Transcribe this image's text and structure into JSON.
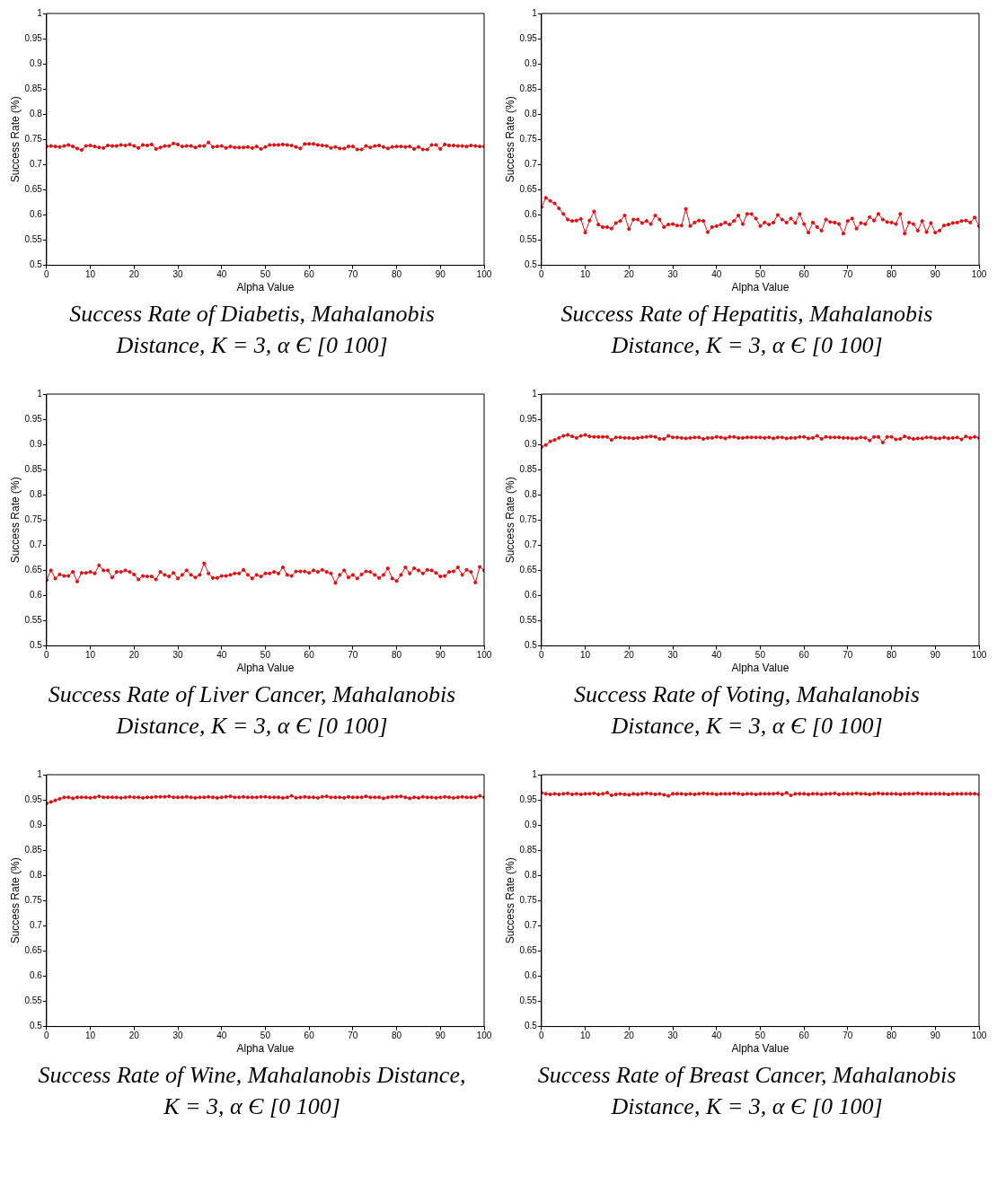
{
  "chart_data": [
    {
      "type": "line",
      "title": "Success Rate of Diabetis, Mahalanobis Distance, K = 3, α Є [0 100]",
      "xlabel": "Alpha Value",
      "ylabel": "Success Rate (%)",
      "marker": "circle",
      "line_style": "solid",
      "grid": false,
      "legend": false,
      "xlim": [
        0,
        100
      ],
      "xticks": [
        0,
        10,
        20,
        30,
        40,
        50,
        60,
        70,
        80,
        90,
        100
      ],
      "ylim": [
        0.5,
        1
      ],
      "yticks": [
        0.5,
        0.55,
        0.6,
        0.65,
        0.7,
        0.75,
        0.8,
        0.85,
        0.9,
        0.95,
        1
      ],
      "x": [
        0,
        1,
        2,
        3,
        4,
        5,
        6,
        7,
        8,
        9,
        10,
        11,
        12,
        13,
        14,
        15,
        16,
        17,
        18,
        19,
        20,
        21,
        22,
        23,
        24,
        25,
        26,
        27,
        28,
        29,
        30,
        31,
        32,
        33,
        34,
        35,
        36,
        37,
        38,
        39,
        40,
        41,
        42,
        43,
        44,
        45,
        46,
        47,
        48,
        49,
        50,
        51,
        52,
        53,
        54,
        55,
        56,
        57,
        58,
        59,
        60,
        61,
        62,
        63,
        64,
        65,
        66,
        67,
        68,
        69,
        70,
        71,
        72,
        73,
        74,
        75,
        76,
        77,
        78,
        79,
        80,
        81,
        82,
        83,
        84,
        85,
        86,
        87,
        88,
        89,
        90,
        91,
        92,
        93,
        94,
        95,
        96,
        97,
        98,
        99,
        100
      ],
      "series": [
        {
          "color": "#e01010",
          "values": [
            0.736,
            0.737,
            0.736,
            0.735,
            0.737,
            0.739,
            0.736,
            0.732,
            0.729,
            0.737,
            0.738,
            0.736,
            0.734,
            0.733,
            0.738,
            0.737,
            0.737,
            0.739,
            0.738,
            0.74,
            0.737,
            0.733,
            0.739,
            0.738,
            0.74,
            0.731,
            0.734,
            0.737,
            0.737,
            0.742,
            0.74,
            0.736,
            0.737,
            0.737,
            0.734,
            0.737,
            0.737,
            0.744,
            0.735,
            0.736,
            0.737,
            0.733,
            0.736,
            0.734,
            0.734,
            0.734,
            0.735,
            0.733,
            0.736,
            0.731,
            0.735,
            0.739,
            0.739,
            0.739,
            0.74,
            0.739,
            0.738,
            0.735,
            0.732,
            0.741,
            0.741,
            0.741,
            0.739,
            0.738,
            0.737,
            0.733,
            0.735,
            0.732,
            0.732,
            0.736,
            0.736,
            0.73,
            0.73,
            0.737,
            0.734,
            0.737,
            0.738,
            0.735,
            0.732,
            0.735,
            0.736,
            0.736,
            0.735,
            0.736,
            0.731,
            0.735,
            0.73,
            0.73,
            0.739,
            0.739,
            0.731,
            0.74,
            0.738,
            0.738,
            0.737,
            0.737,
            0.736,
            0.738,
            0.737,
            0.736,
            0.736
          ]
        }
      ]
    },
    {
      "type": "line",
      "title": "Success Rate of Hepatitis, Mahalanobis Distance, K = 3, α Є [0 100]",
      "xlabel": "Alpha Value",
      "ylabel": "Success Rate (%)",
      "marker": "circle",
      "line_style": "solid",
      "grid": false,
      "legend": false,
      "xlim": [
        0,
        100
      ],
      "xticks": [
        0,
        10,
        20,
        30,
        40,
        50,
        60,
        70,
        80,
        90,
        100
      ],
      "ylim": [
        0.5,
        1
      ],
      "yticks": [
        0.5,
        0.55,
        0.6,
        0.65,
        0.7,
        0.75,
        0.8,
        0.85,
        0.9,
        0.95,
        1
      ],
      "x": [
        0,
        1,
        2,
        3,
        4,
        5,
        6,
        7,
        8,
        9,
        10,
        11,
        12,
        13,
        14,
        15,
        16,
        17,
        18,
        19,
        20,
        21,
        22,
        23,
        24,
        25,
        26,
        27,
        28,
        29,
        30,
        31,
        32,
        33,
        34,
        35,
        36,
        37,
        38,
        39,
        40,
        41,
        42,
        43,
        44,
        45,
        46,
        47,
        48,
        49,
        50,
        51,
        52,
        53,
        54,
        55,
        56,
        57,
        58,
        59,
        60,
        61,
        62,
        63,
        64,
        65,
        66,
        67,
        68,
        69,
        70,
        71,
        72,
        73,
        74,
        75,
        76,
        77,
        78,
        79,
        80,
        81,
        82,
        83,
        84,
        85,
        86,
        87,
        88,
        89,
        90,
        91,
        92,
        93,
        94,
        95,
        96,
        97,
        98,
        99,
        100
      ],
      "series": [
        {
          "color": "#e01010",
          "values": [
            0.616,
            0.634,
            0.628,
            0.623,
            0.613,
            0.602,
            0.591,
            0.588,
            0.589,
            0.592,
            0.565,
            0.589,
            0.607,
            0.581,
            0.576,
            0.576,
            0.573,
            0.584,
            0.588,
            0.599,
            0.572,
            0.591,
            0.591,
            0.584,
            0.588,
            0.582,
            0.599,
            0.591,
            0.576,
            0.581,
            0.582,
            0.579,
            0.579,
            0.612,
            0.578,
            0.585,
            0.589,
            0.588,
            0.566,
            0.576,
            0.578,
            0.581,
            0.585,
            0.581,
            0.588,
            0.599,
            0.582,
            0.602,
            0.602,
            0.593,
            0.578,
            0.585,
            0.581,
            0.585,
            0.6,
            0.591,
            0.585,
            0.593,
            0.584,
            0.602,
            0.582,
            0.565,
            0.585,
            0.576,
            0.569,
            0.591,
            0.586,
            0.585,
            0.582,
            0.563,
            0.588,
            0.593,
            0.573,
            0.584,
            0.582,
            0.596,
            0.589,
            0.602,
            0.591,
            0.586,
            0.585,
            0.582,
            0.602,
            0.563,
            0.585,
            0.582,
            0.569,
            0.588,
            0.566,
            0.584,
            0.565,
            0.569,
            0.579,
            0.581,
            0.584,
            0.585,
            0.588,
            0.589,
            0.585,
            0.595,
            0.578
          ]
        }
      ]
    },
    {
      "type": "line",
      "title": "Success Rate of Liver Cancer, Mahalanobis Distance, K = 3, α Є [0 100]",
      "xlabel": "Alpha Value",
      "ylabel": "Success Rate (%)",
      "marker": "circle",
      "line_style": "solid",
      "grid": false,
      "legend": false,
      "xlim": [
        0,
        100
      ],
      "xticks": [
        0,
        10,
        20,
        30,
        40,
        50,
        60,
        70,
        80,
        90,
        100
      ],
      "ylim": [
        0.5,
        1
      ],
      "yticks": [
        0.5,
        0.55,
        0.6,
        0.65,
        0.7,
        0.75,
        0.8,
        0.85,
        0.9,
        0.95,
        1
      ],
      "x": [
        0,
        1,
        2,
        3,
        4,
        5,
        6,
        7,
        8,
        9,
        10,
        11,
        12,
        13,
        14,
        15,
        16,
        17,
        18,
        19,
        20,
        21,
        22,
        23,
        24,
        25,
        26,
        27,
        28,
        29,
        30,
        31,
        32,
        33,
        34,
        35,
        36,
        37,
        38,
        39,
        40,
        41,
        42,
        43,
        44,
        45,
        46,
        47,
        48,
        49,
        50,
        51,
        52,
        53,
        54,
        55,
        56,
        57,
        58,
        59,
        60,
        61,
        62,
        63,
        64,
        65,
        66,
        67,
        68,
        69,
        70,
        71,
        72,
        73,
        74,
        75,
        76,
        77,
        78,
        79,
        80,
        81,
        82,
        83,
        84,
        85,
        86,
        87,
        88,
        89,
        90,
        91,
        92,
        93,
        94,
        95,
        96,
        97,
        98,
        99,
        100
      ],
      "series": [
        {
          "color": "#e01010",
          "values": [
            0.631,
            0.65,
            0.634,
            0.642,
            0.639,
            0.639,
            0.647,
            0.628,
            0.645,
            0.645,
            0.647,
            0.644,
            0.66,
            0.65,
            0.65,
            0.636,
            0.647,
            0.647,
            0.65,
            0.647,
            0.642,
            0.632,
            0.639,
            0.638,
            0.638,
            0.632,
            0.647,
            0.641,
            0.638,
            0.645,
            0.634,
            0.641,
            0.65,
            0.641,
            0.636,
            0.641,
            0.664,
            0.644,
            0.635,
            0.635,
            0.639,
            0.639,
            0.641,
            0.644,
            0.644,
            0.651,
            0.641,
            0.634,
            0.641,
            0.638,
            0.644,
            0.644,
            0.647,
            0.644,
            0.656,
            0.641,
            0.639,
            0.648,
            0.648,
            0.648,
            0.645,
            0.65,
            0.647,
            0.651,
            0.647,
            0.644,
            0.625,
            0.641,
            0.65,
            0.636,
            0.641,
            0.634,
            0.642,
            0.648,
            0.647,
            0.641,
            0.635,
            0.641,
            0.654,
            0.634,
            0.629,
            0.641,
            0.656,
            0.644,
            0.654,
            0.65,
            0.644,
            0.651,
            0.65,
            0.645,
            0.638,
            0.639,
            0.647,
            0.648,
            0.656,
            0.641,
            0.651,
            0.647,
            0.626,
            0.657,
            0.65
          ]
        }
      ]
    },
    {
      "type": "line",
      "title": "Success Rate of Voting, Mahalanobis Distance, K = 3, α Є [0 100]",
      "xlabel": "Alpha Value",
      "ylabel": "Success Rate (%)",
      "marker": "circle",
      "line_style": "solid",
      "grid": false,
      "legend": false,
      "xlim": [
        0,
        100
      ],
      "xticks": [
        0,
        10,
        20,
        30,
        40,
        50,
        60,
        70,
        80,
        90,
        100
      ],
      "ylim": [
        0.5,
        1
      ],
      "yticks": [
        0.5,
        0.55,
        0.6,
        0.65,
        0.7,
        0.75,
        0.8,
        0.85,
        0.9,
        0.95,
        1
      ],
      "x": [
        0,
        1,
        2,
        3,
        4,
        5,
        6,
        7,
        8,
        9,
        10,
        11,
        12,
        13,
        14,
        15,
        16,
        17,
        18,
        19,
        20,
        21,
        22,
        23,
        24,
        25,
        26,
        27,
        28,
        29,
        30,
        31,
        32,
        33,
        34,
        35,
        36,
        37,
        38,
        39,
        40,
        41,
        42,
        43,
        44,
        45,
        46,
        47,
        48,
        49,
        50,
        51,
        52,
        53,
        54,
        55,
        56,
        57,
        58,
        59,
        60,
        61,
        62,
        63,
        64,
        65,
        66,
        67,
        68,
        69,
        70,
        71,
        72,
        73,
        74,
        75,
        76,
        77,
        78,
        79,
        80,
        81,
        82,
        83,
        84,
        85,
        86,
        87,
        88,
        89,
        90,
        91,
        92,
        93,
        94,
        95,
        96,
        97,
        98,
        99,
        100
      ],
      "series": [
        {
          "color": "#e01010",
          "values": [
            0.895,
            0.899,
            0.906,
            0.909,
            0.913,
            0.917,
            0.919,
            0.916,
            0.913,
            0.917,
            0.919,
            0.916,
            0.915,
            0.915,
            0.915,
            0.915,
            0.909,
            0.914,
            0.914,
            0.913,
            0.913,
            0.912,
            0.913,
            0.914,
            0.915,
            0.916,
            0.915,
            0.911,
            0.911,
            0.917,
            0.914,
            0.914,
            0.913,
            0.912,
            0.913,
            0.914,
            0.914,
            0.911,
            0.913,
            0.913,
            0.915,
            0.914,
            0.912,
            0.915,
            0.915,
            0.913,
            0.913,
            0.914,
            0.914,
            0.914,
            0.914,
            0.913,
            0.914,
            0.912,
            0.914,
            0.914,
            0.912,
            0.913,
            0.913,
            0.915,
            0.915,
            0.912,
            0.913,
            0.917,
            0.911,
            0.915,
            0.914,
            0.914,
            0.914,
            0.913,
            0.913,
            0.912,
            0.912,
            0.914,
            0.913,
            0.908,
            0.915,
            0.915,
            0.904,
            0.915,
            0.915,
            0.91,
            0.911,
            0.916,
            0.913,
            0.911,
            0.912,
            0.912,
            0.914,
            0.914,
            0.912,
            0.912,
            0.914,
            0.912,
            0.913,
            0.914,
            0.91,
            0.916,
            0.913,
            0.915,
            0.913
          ]
        }
      ]
    },
    {
      "type": "line",
      "title": "Success Rate of Wine, Mahalanobis Distance, K = 3, α Є [0 100]",
      "xlabel": "Alpha Value",
      "ylabel": "Success Rate (%)",
      "marker": "circle",
      "line_style": "solid",
      "grid": false,
      "legend": false,
      "xlim": [
        0,
        100
      ],
      "xticks": [
        0,
        10,
        20,
        30,
        40,
        50,
        60,
        70,
        80,
        90,
        100
      ],
      "ylim": [
        0.5,
        1
      ],
      "yticks": [
        0.5,
        0.55,
        0.6,
        0.65,
        0.7,
        0.75,
        0.8,
        0.85,
        0.9,
        0.95,
        1
      ],
      "x": [
        0,
        1,
        2,
        3,
        4,
        5,
        6,
        7,
        8,
        9,
        10,
        11,
        12,
        13,
        14,
        15,
        16,
        17,
        18,
        19,
        20,
        21,
        22,
        23,
        24,
        25,
        26,
        27,
        28,
        29,
        30,
        31,
        32,
        33,
        34,
        35,
        36,
        37,
        38,
        39,
        40,
        41,
        42,
        43,
        44,
        45,
        46,
        47,
        48,
        49,
        50,
        51,
        52,
        53,
        54,
        55,
        56,
        57,
        58,
        59,
        60,
        61,
        62,
        63,
        64,
        65,
        66,
        67,
        68,
        69,
        70,
        71,
        72,
        73,
        74,
        75,
        76,
        77,
        78,
        79,
        80,
        81,
        82,
        83,
        84,
        85,
        86,
        87,
        88,
        89,
        90,
        91,
        92,
        93,
        94,
        95,
        96,
        97,
        98,
        99,
        100
      ],
      "series": [
        {
          "color": "#e01010",
          "values": [
            0.943,
            0.946,
            0.949,
            0.952,
            0.955,
            0.955,
            0.953,
            0.955,
            0.955,
            0.955,
            0.954,
            0.955,
            0.957,
            0.955,
            0.955,
            0.955,
            0.955,
            0.954,
            0.955,
            0.956,
            0.955,
            0.955,
            0.954,
            0.955,
            0.955,
            0.956,
            0.956,
            0.956,
            0.957,
            0.955,
            0.955,
            0.955,
            0.956,
            0.955,
            0.954,
            0.955,
            0.955,
            0.956,
            0.955,
            0.954,
            0.955,
            0.956,
            0.957,
            0.955,
            0.955,
            0.956,
            0.955,
            0.955,
            0.955,
            0.956,
            0.956,
            0.955,
            0.955,
            0.955,
            0.954,
            0.955,
            0.958,
            0.954,
            0.955,
            0.956,
            0.955,
            0.955,
            0.954,
            0.956,
            0.957,
            0.955,
            0.955,
            0.955,
            0.954,
            0.956,
            0.955,
            0.955,
            0.955,
            0.957,
            0.955,
            0.955,
            0.955,
            0.953,
            0.955,
            0.956,
            0.956,
            0.957,
            0.955,
            0.953,
            0.955,
            0.954,
            0.956,
            0.955,
            0.955,
            0.954,
            0.955,
            0.956,
            0.955,
            0.954,
            0.955,
            0.956,
            0.955,
            0.955,
            0.955,
            0.958,
            0.955
          ]
        }
      ]
    },
    {
      "type": "line",
      "title": "Success Rate of Breast Cancer, Mahalanobis Distance, K = 3, α Є [0 100]",
      "xlabel": "Alpha Value",
      "ylabel": "Success Rate (%)",
      "marker": "circle",
      "line_style": "solid",
      "grid": false,
      "legend": false,
      "xlim": [
        0,
        100
      ],
      "xticks": [
        0,
        10,
        20,
        30,
        40,
        50,
        60,
        70,
        80,
        90,
        100
      ],
      "ylim": [
        0.5,
        1
      ],
      "yticks": [
        0.5,
        0.55,
        0.6,
        0.65,
        0.7,
        0.75,
        0.8,
        0.85,
        0.9,
        0.95,
        1
      ],
      "x": [
        0,
        1,
        2,
        3,
        4,
        5,
        6,
        7,
        8,
        9,
        10,
        11,
        12,
        13,
        14,
        15,
        16,
        17,
        18,
        19,
        20,
        21,
        22,
        23,
        24,
        25,
        26,
        27,
        28,
        29,
        30,
        31,
        32,
        33,
        34,
        35,
        36,
        37,
        38,
        39,
        40,
        41,
        42,
        43,
        44,
        45,
        46,
        47,
        48,
        49,
        50,
        51,
        52,
        53,
        54,
        55,
        56,
        57,
        58,
        59,
        60,
        61,
        62,
        63,
        64,
        65,
        66,
        67,
        68,
        69,
        70,
        71,
        72,
        73,
        74,
        75,
        76,
        77,
        78,
        79,
        80,
        81,
        82,
        83,
        84,
        85,
        86,
        87,
        88,
        89,
        90,
        91,
        92,
        93,
        94,
        95,
        96,
        97,
        98,
        99,
        100
      ],
      "series": [
        {
          "color": "#e01010",
          "values": [
            0.964,
            0.962,
            0.961,
            0.962,
            0.961,
            0.962,
            0.963,
            0.961,
            0.962,
            0.961,
            0.962,
            0.962,
            0.963,
            0.961,
            0.962,
            0.964,
            0.959,
            0.961,
            0.962,
            0.961,
            0.96,
            0.962,
            0.961,
            0.962,
            0.963,
            0.962,
            0.961,
            0.962,
            0.96,
            0.958,
            0.962,
            0.962,
            0.962,
            0.961,
            0.962,
            0.961,
            0.962,
            0.963,
            0.962,
            0.962,
            0.961,
            0.962,
            0.962,
            0.962,
            0.963,
            0.962,
            0.961,
            0.962,
            0.962,
            0.961,
            0.962,
            0.962,
            0.962,
            0.962,
            0.963,
            0.961,
            0.964,
            0.959,
            0.962,
            0.962,
            0.962,
            0.961,
            0.962,
            0.962,
            0.961,
            0.962,
            0.962,
            0.963,
            0.961,
            0.962,
            0.962,
            0.962,
            0.963,
            0.962,
            0.962,
            0.961,
            0.962,
            0.963,
            0.962,
            0.962,
            0.962,
            0.962,
            0.961,
            0.962,
            0.962,
            0.962,
            0.963,
            0.962,
            0.962,
            0.962,
            0.962,
            0.962,
            0.962,
            0.961,
            0.962,
            0.962,
            0.962,
            0.962,
            0.962,
            0.962,
            0.961
          ]
        }
      ]
    }
  ]
}
